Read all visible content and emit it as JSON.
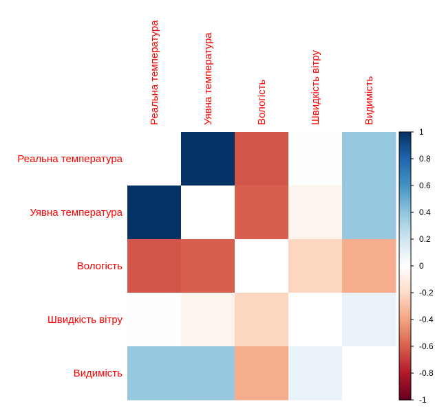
{
  "chart_data": {
    "type": "heatmap",
    "title": "",
    "variables": [
      "Реальна температура",
      "Уявна температура",
      "Вологість",
      "Швидкість вітру",
      "Видимість"
    ],
    "matrix": [
      [
        1.0,
        0.99,
        -0.63,
        0.01,
        0.39
      ],
      [
        0.99,
        1.0,
        -0.6,
        -0.06,
        0.38
      ],
      [
        -0.63,
        -0.6,
        1.0,
        -0.22,
        -0.37
      ],
      [
        0.01,
        -0.06,
        -0.22,
        1.0,
        0.1
      ],
      [
        0.39,
        0.38,
        -0.37,
        0.1,
        1.0
      ]
    ],
    "diagonal_shown": false,
    "color_scale": {
      "min": -1,
      "max": 1,
      "ticks": [
        "1",
        "0.8",
        "0.6",
        "0.4",
        "0.2",
        "0",
        "-0.2",
        "-0.4",
        "-0.6",
        "-0.8",
        "-1"
      ],
      "colors": [
        "#67001f",
        "#b2182b",
        "#d6604d",
        "#f4a582",
        "#fddbc7",
        "#ffffff",
        "#d1e5f0",
        "#92c5de",
        "#4393c3",
        "#2166ac",
        "#053061"
      ]
    },
    "label_color": "#ff0000"
  }
}
